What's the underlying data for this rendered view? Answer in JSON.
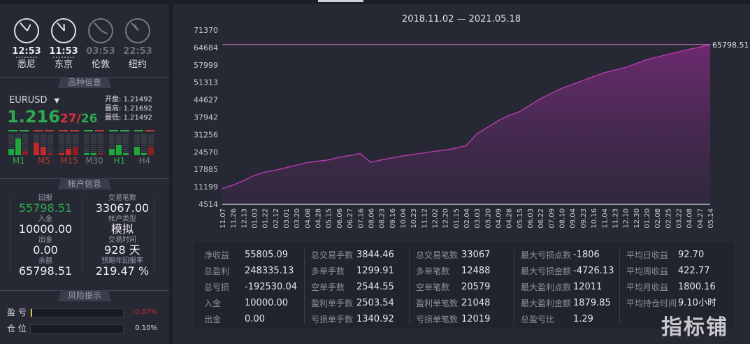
{
  "clocks": [
    {
      "time": "12:53",
      "city": "悉尼",
      "active": true,
      "h": 12.9,
      "m": 53
    },
    {
      "time": "11:53",
      "city": "东京",
      "active": true,
      "h": 11.9,
      "m": 53
    },
    {
      "time": "03:53",
      "city": "伦敦",
      "active": false,
      "h": 3.9,
      "m": 53
    },
    {
      "time": "22:53",
      "city": "纽约",
      "active": false,
      "h": 22.9,
      "m": 53
    }
  ],
  "symbol_section": {
    "title": "品种信息",
    "symbol": "EURUSD",
    "price_main": "1.216",
    "price_bid": "27",
    "price_sep": "/",
    "price_ask": "26",
    "open_label": "开盘:",
    "open": "1.21492",
    "high_label": "最高:",
    "high": "1.21692",
    "low_label": "最低:",
    "low": "1.21492",
    "timeframes": [
      {
        "label": "M1",
        "color": "#2fa84f"
      },
      {
        "label": "M5",
        "color": "#b83a3a"
      },
      {
        "label": "M15",
        "color": "#b83a3a"
      },
      {
        "label": "M30",
        "color": "#777a84"
      },
      {
        "label": "H1",
        "color": "#2fa84f"
      },
      {
        "label": "H4",
        "color": "#777a84"
      }
    ]
  },
  "account_section": {
    "title": "帐户信息",
    "left": [
      {
        "label": "回报",
        "value": "55798.51"
      },
      {
        "label": "入金",
        "value": "10000.00"
      },
      {
        "label": "出金",
        "value": "0.00"
      },
      {
        "label": "余额",
        "value": "65798.51"
      }
    ],
    "right": [
      {
        "label": "交易笔数",
        "value": "33067.00"
      },
      {
        "label": "帐户类型",
        "value": "模拟"
      },
      {
        "label": "交易时间",
        "value": "928 天"
      },
      {
        "label": "预期年回报率",
        "value": "219.47 %"
      }
    ]
  },
  "risk_section": {
    "title": "风险提示",
    "rows": [
      {
        "label": "盈 亏",
        "value": "-0.07%",
        "color": "#c0303a"
      },
      {
        "label": "仓 位",
        "value": "0.10%",
        "color": "#d8d8dc"
      }
    ]
  },
  "chart_data": {
    "type": "area",
    "title": "2018.11.02 — 2021.05.18",
    "yticks": [
      "71370",
      "64684",
      "57999",
      "51313",
      "44627",
      "37942",
      "31256",
      "24570",
      "17885",
      "11199",
      "4514"
    ],
    "ylim": [
      4514,
      71370
    ],
    "x": [
      "11.07",
      "11.26",
      "12.13",
      "01.03",
      "01.22",
      "02.12",
      "03.01",
      "03.20",
      "04.08",
      "04.28",
      "05.15",
      "06.06",
      "06.27",
      "07.16",
      "08.06",
      "08.23",
      "09.16",
      "10.04",
      "10.23",
      "11.12",
      "12.02",
      "12.20",
      "01.15",
      "02.04",
      "03.03",
      "03.20",
      "04.09",
      "04.28",
      "05.15",
      "06.03",
      "06.22",
      "07.09",
      "08.10",
      "09.04",
      "09.23",
      "10.16",
      "11.04",
      "11.23",
      "12.10",
      "12.30",
      "01.20",
      "02.08",
      "02.25",
      "03.22",
      "04.08",
      "04.27",
      "05.14"
    ],
    "values": [
      10500,
      11800,
      13500,
      15500,
      16800,
      17500,
      18500,
      19500,
      20500,
      21000,
      21500,
      22500,
      23200,
      24000,
      20600,
      21500,
      22300,
      23000,
      23600,
      24200,
      24800,
      25300,
      26000,
      27000,
      31500,
      34000,
      36500,
      38500,
      40000,
      42500,
      45000,
      47000,
      49000,
      50500,
      52000,
      53500,
      55000,
      56000,
      57000,
      58500,
      60000,
      61000,
      62000,
      63000,
      64000,
      64800,
      65798.51
    ],
    "reference_line": {
      "value": 65798.51,
      "label": "65798.51"
    },
    "line_color": "#b03aa8",
    "grid": false
  },
  "stats": [
    [
      {
        "label": "净收益",
        "value": "55805.09"
      },
      {
        "label": "总盈利",
        "value": "248335.13"
      },
      {
        "label": "总亏损",
        "value": "-192530.04"
      },
      {
        "label": "入金",
        "value": "10000.00"
      },
      {
        "label": "出金",
        "value": "0.00"
      }
    ],
    [
      {
        "label": "总交易手数",
        "value": "3844.46"
      },
      {
        "label": "多单手数",
        "value": "1299.91"
      },
      {
        "label": "空单手数",
        "value": "2544.55"
      },
      {
        "label": "盈利单手数",
        "value": "2503.54"
      },
      {
        "label": "亏损单手数",
        "value": "1340.92"
      }
    ],
    [
      {
        "label": "总交易笔数",
        "value": "33067"
      },
      {
        "label": "多单笔数",
        "value": "12488"
      },
      {
        "label": "空单笔数",
        "value": "20579"
      },
      {
        "label": "盈利单笔数",
        "value": "21048"
      },
      {
        "label": "亏损单笔数",
        "value": "12019"
      }
    ],
    [
      {
        "label": "最大亏损点数",
        "value": "-1806"
      },
      {
        "label": "最大亏损金额",
        "value": "-4726.13"
      },
      {
        "label": "最大盈利点数",
        "value": "12011"
      },
      {
        "label": "最大盈利金额",
        "value": "1879.85"
      },
      {
        "label": "总盈亏比",
        "value": "1.29"
      }
    ],
    [
      {
        "label": "平均日收益",
        "value": "92.70"
      },
      {
        "label": "平均周收益",
        "value": "422.77"
      },
      {
        "label": "平均月收益",
        "value": "1800.16"
      },
      {
        "label": "平均持仓时间",
        "value": "9.10小时"
      }
    ]
  ],
  "watermark": "指标铺"
}
